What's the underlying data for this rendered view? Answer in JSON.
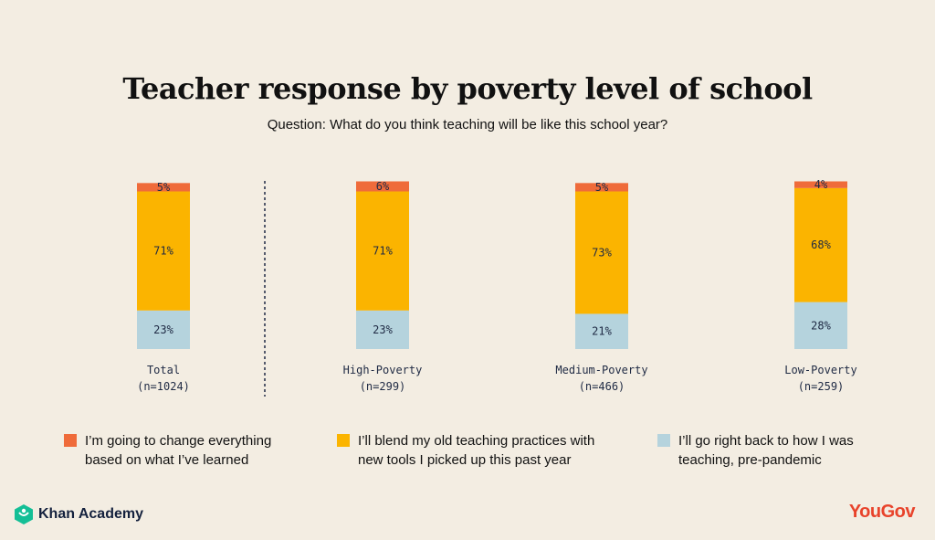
{
  "title": "Teacher response by poverty level of school",
  "subtitle": "Question: What do you think teaching will be like this school year?",
  "colors": {
    "change": "#ef6b3a",
    "blend": "#fbb400",
    "back": "#b5d3dd",
    "background": "#f3ede2"
  },
  "legend": [
    {
      "key": "change",
      "text": "I’m going to change everything\nbased on what I’ve learned"
    },
    {
      "key": "blend",
      "text": "I’ll blend my old teaching practices with\nnew tools I picked up this past year"
    },
    {
      "key": "back",
      "text": "I’ll go right back to how I was\nteaching, pre-pandemic"
    }
  ],
  "chart_data": {
    "type": "bar",
    "stacked": true,
    "unit": "%",
    "categories": [
      {
        "name": "Total",
        "n": "(n=1024)"
      },
      {
        "name": "High-Poverty",
        "n": "(n=299)"
      },
      {
        "name": "Medium-Poverty",
        "n": "(n=466)"
      },
      {
        "name": "Low-Poverty",
        "n": "(n=259)"
      }
    ],
    "series": [
      {
        "key": "back",
        "name": "I’ll go right back to how I was teaching, pre-pandemic",
        "values": [
          23,
          23,
          21,
          28
        ]
      },
      {
        "key": "blend",
        "name": "I’ll blend my old teaching practices with new tools I picked up this past year",
        "values": [
          71,
          71,
          73,
          68
        ]
      },
      {
        "key": "change",
        "name": "I’m going to change everything based on what I’ve learned",
        "values": [
          5,
          6,
          5,
          4
        ]
      }
    ],
    "divider_after": "Total"
  },
  "logos": {
    "left": "Khan Academy",
    "right": "YouGov"
  }
}
